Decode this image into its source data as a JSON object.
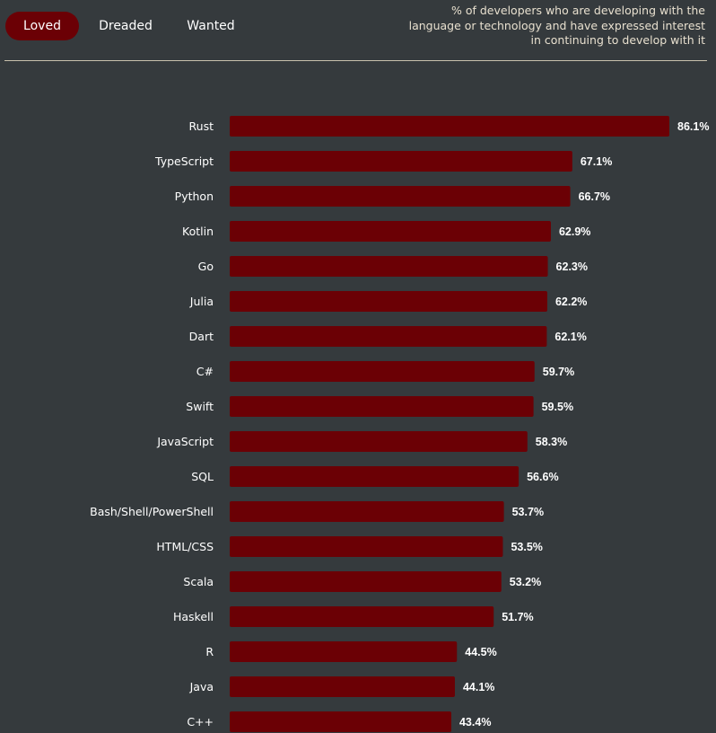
{
  "tabs": [
    {
      "label": "Loved",
      "active": true
    },
    {
      "label": "Dreaded",
      "active": false
    },
    {
      "label": "Wanted",
      "active": false
    }
  ],
  "description": "% of developers who are developing with the language or technology and have expressed interest in continuing to develop with it",
  "colors": {
    "background": "#353a3d",
    "bar": "#6b0005",
    "accent": "#6b0005",
    "text": "#ffffff",
    "description_text": "#e8e0cf"
  },
  "chart_data": {
    "type": "bar",
    "orientation": "horizontal",
    "categories": [
      "Rust",
      "TypeScript",
      "Python",
      "Kotlin",
      "Go",
      "Julia",
      "Dart",
      "C#",
      "Swift",
      "JavaScript",
      "SQL",
      "Bash/Shell/PowerShell",
      "HTML/CSS",
      "Scala",
      "Haskell",
      "R",
      "Java",
      "C++"
    ],
    "values": [
      86.1,
      67.1,
      66.7,
      62.9,
      62.3,
      62.2,
      62.1,
      59.7,
      59.5,
      58.3,
      56.6,
      53.7,
      53.5,
      53.2,
      51.7,
      44.5,
      44.1,
      43.4
    ],
    "value_labels": [
      "86.1%",
      "67.1%",
      "66.7%",
      "62.9%",
      "62.3%",
      "62.2%",
      "62.1%",
      "59.7%",
      "59.5%",
      "58.3%",
      "56.6%",
      "53.7%",
      "53.5%",
      "53.2%",
      "51.7%",
      "44.5%",
      "44.1%",
      "43.4%"
    ],
    "xlim": [
      0,
      86.1
    ],
    "grid": false,
    "legend": "none"
  }
}
